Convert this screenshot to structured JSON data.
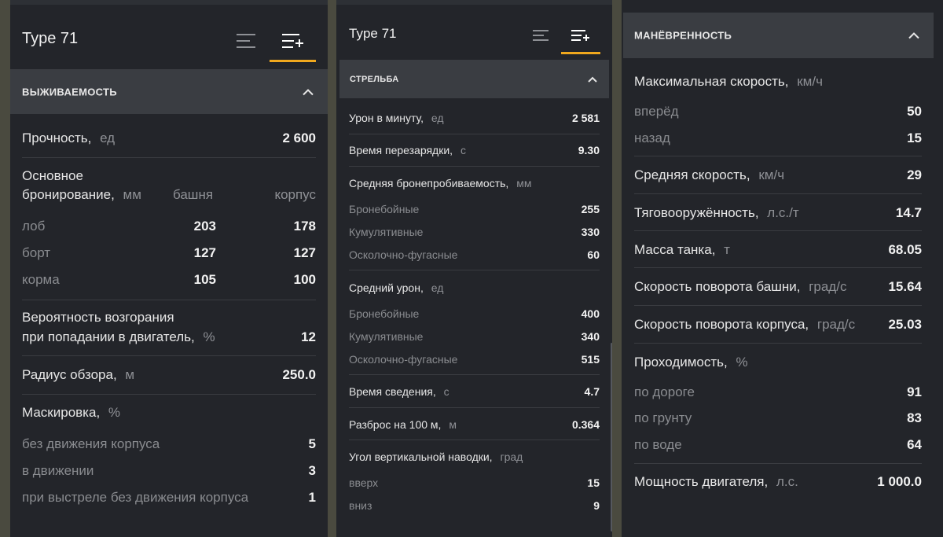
{
  "panel1": {
    "title": "Type 71",
    "tab_list_icon": "list-icon",
    "tab_list_plus_icon": "list-plus-icon",
    "section": "ВЫЖИВАЕМОСТЬ",
    "durability": {
      "label": "Прочность,",
      "unit": "ед",
      "value": "2 600"
    },
    "armor": {
      "label_line1": "Основное",
      "label_line2": "бронирование,",
      "unit": "мм",
      "col_turret": "башня",
      "col_hull": "корпус",
      "rows": [
        {
          "label": "лоб",
          "turret": "203",
          "hull": "178"
        },
        {
          "label": "борт",
          "turret": "127",
          "hull": "127"
        },
        {
          "label": "корма",
          "turret": "105",
          "hull": "100"
        }
      ]
    },
    "fire": {
      "line1": "Вероятность возгорания",
      "line2": "при попадании в двигатель,",
      "unit": "%",
      "value": "12"
    },
    "view_range": {
      "label": "Радиус обзора,",
      "unit": "м",
      "value": "250.0"
    },
    "camo": {
      "label": "Маскировка,",
      "unit": "%",
      "rows": [
        {
          "label": "без движения корпуса",
          "value": "5"
        },
        {
          "label": "в движении",
          "value": "3"
        },
        {
          "label": "при выстреле без движения корпуса",
          "value": "1"
        }
      ]
    }
  },
  "panel2": {
    "title": "Type 71",
    "section": "СТРЕЛЬБА",
    "dpm": {
      "label": "Урон в минуту,",
      "unit": "ед",
      "value": "2 581"
    },
    "reload": {
      "label": "Время перезарядки,",
      "unit": "с",
      "value": "9.30"
    },
    "pen": {
      "label": "Средняя бронепробиваемость,",
      "unit": "мм",
      "rows": [
        {
          "label": "Бронебойные",
          "value": "255"
        },
        {
          "label": "Кумулятивные",
          "value": "330"
        },
        {
          "label": "Осколочно-фугасные",
          "value": "60"
        }
      ]
    },
    "dmg": {
      "label": "Средний урон,",
      "unit": "ед",
      "rows": [
        {
          "label": "Бронебойные",
          "value": "400"
        },
        {
          "label": "Кумулятивные",
          "value": "340"
        },
        {
          "label": "Осколочно-фугасные",
          "value": "515"
        }
      ]
    },
    "aim": {
      "label": "Время сведения,",
      "unit": "с",
      "value": "4.7"
    },
    "dispersion": {
      "label": "Разброс на 100 м,",
      "unit": "м",
      "value": "0.364"
    },
    "elev": {
      "label": "Угол вертикальной наводки,",
      "unit": "град",
      "rows": [
        {
          "label": "вверх",
          "value": "15"
        },
        {
          "label": "вниз",
          "value": "9"
        }
      ]
    }
  },
  "panel3": {
    "section": "МАНЁВРЕННОСТЬ",
    "speed": {
      "label": "Максимальная скорость,",
      "unit": "км/ч",
      "rows": [
        {
          "label": "вперёд",
          "value": "50"
        },
        {
          "label": "назад",
          "value": "15"
        }
      ]
    },
    "avg_speed": {
      "label": "Средняя скорость,",
      "unit": "км/ч",
      "value": "29"
    },
    "power_ratio": {
      "label": "Тяговооружённость,",
      "unit": "л.с./т",
      "value": "14.7"
    },
    "mass": {
      "label": "Масса танка,",
      "unit": "т",
      "value": "68.05"
    },
    "turret_traverse": {
      "label": "Скорость поворота башни,",
      "unit": "град/с",
      "value": "15.64"
    },
    "hull_traverse": {
      "label": "Скорость поворота корпуса,",
      "unit": "град/с",
      "value": "25.03"
    },
    "terrain": {
      "label": "Проходимость,",
      "unit": "%",
      "rows": [
        {
          "label": "по дороге",
          "value": "91"
        },
        {
          "label": "по грунту",
          "value": "83"
        },
        {
          "label": "по воде",
          "value": "64"
        }
      ]
    },
    "engine": {
      "label": "Мощность двигателя,",
      "unit": "л.с.",
      "value": "1 000.0"
    }
  },
  "colors": {
    "accent": "#f0a81e",
    "panel_bg": "#23252a",
    "header_bg": "#3a3d42"
  }
}
